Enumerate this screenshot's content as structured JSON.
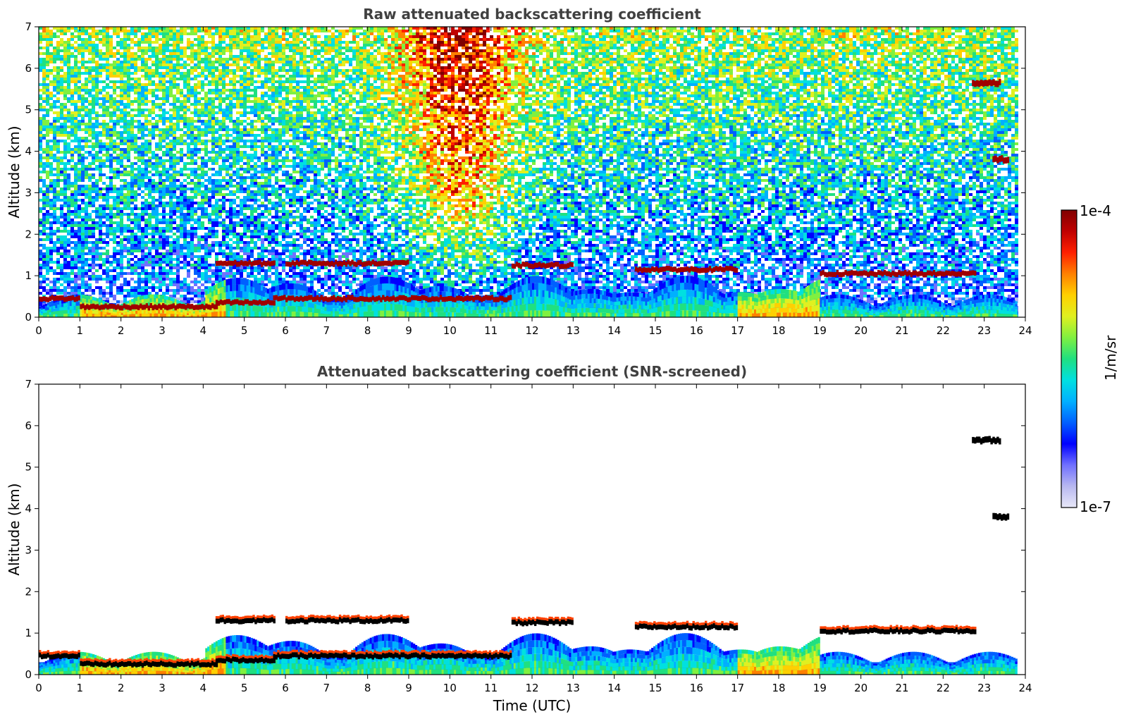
{
  "chart_data": [
    {
      "type": "heatmap",
      "title": "Raw attenuated backscattering coefficient",
      "xlabel": "",
      "ylabel": "Altitude (km)",
      "xlim": [
        0,
        24
      ],
      "ylim": [
        0,
        7
      ],
      "x_ticks": [
        0,
        1,
        2,
        3,
        4,
        5,
        6,
        7,
        8,
        9,
        10,
        11,
        12,
        13,
        14,
        15,
        16,
        17,
        18,
        19,
        20,
        21,
        22,
        23,
        24
      ],
      "y_ticks": [
        0,
        1,
        2,
        3,
        4,
        5,
        6,
        7
      ],
      "screened": false,
      "data_end_hour": 23.8,
      "cloud_layers": [
        {
          "start": 0.0,
          "end": 1.0,
          "altitude": 0.45
        },
        {
          "start": 1.0,
          "end": 4.3,
          "altitude": 0.25
        },
        {
          "start": 4.3,
          "end": 5.7,
          "altitude": 0.35
        },
        {
          "start": 4.3,
          "end": 5.7,
          "altitude": 1.3
        },
        {
          "start": 5.7,
          "end": 11.5,
          "altitude": 0.45
        },
        {
          "start": 6.0,
          "end": 9.0,
          "altitude": 1.3
        },
        {
          "start": 11.5,
          "end": 13.0,
          "altitude": 1.25
        },
        {
          "start": 14.5,
          "end": 17.0,
          "altitude": 1.15
        },
        {
          "start": 19.0,
          "end": 22.8,
          "altitude": 1.05
        },
        {
          "start": 22.7,
          "end": 23.4,
          "altitude": 5.65
        },
        {
          "start": 23.2,
          "end": 23.6,
          "altitude": 3.8
        }
      ]
    },
    {
      "type": "heatmap",
      "title": "Attenuated backscattering coefficient (SNR-screened)",
      "xlabel": "Time (UTC)",
      "ylabel": "Altitude (km)",
      "xlim": [
        0,
        24
      ],
      "ylim": [
        0,
        7
      ],
      "x_ticks": [
        0,
        1,
        2,
        3,
        4,
        5,
        6,
        7,
        8,
        9,
        10,
        11,
        12,
        13,
        14,
        15,
        16,
        17,
        18,
        19,
        20,
        21,
        22,
        23,
        24
      ],
      "y_ticks": [
        0,
        1,
        2,
        3,
        4,
        5,
        6,
        7
      ],
      "screened": true,
      "data_end_hour": 23.8,
      "cloud_layers": [
        {
          "start": 0.0,
          "end": 1.0,
          "altitude": 0.45
        },
        {
          "start": 1.0,
          "end": 4.3,
          "altitude": 0.25
        },
        {
          "start": 4.3,
          "end": 5.7,
          "altitude": 0.35
        },
        {
          "start": 4.3,
          "end": 5.7,
          "altitude": 1.3
        },
        {
          "start": 5.7,
          "end": 11.5,
          "altitude": 0.45
        },
        {
          "start": 6.0,
          "end": 9.0,
          "altitude": 1.3
        },
        {
          "start": 11.5,
          "end": 13.0,
          "altitude": 1.25
        },
        {
          "start": 14.5,
          "end": 17.0,
          "altitude": 1.15
        },
        {
          "start": 19.0,
          "end": 22.8,
          "altitude": 1.05
        },
        {
          "start": 22.7,
          "end": 23.4,
          "altitude": 5.65
        },
        {
          "start": 23.2,
          "end": 23.6,
          "altitude": 3.8
        }
      ]
    }
  ],
  "colorbar": {
    "max_label": "1e-4",
    "min_label": "1e-7",
    "unit_label": "1/m/sr",
    "scale": "log",
    "range": [
      1e-07,
      0.0001
    ],
    "colors": [
      "#e8e8f8",
      "#b8b8f0",
      "#7070ff",
      "#0000ff",
      "#0060ff",
      "#00b0ff",
      "#00e0e0",
      "#20e080",
      "#80f040",
      "#e0f020",
      "#ffd000",
      "#ff8000",
      "#ff2000",
      "#c00000",
      "#800000"
    ]
  }
}
